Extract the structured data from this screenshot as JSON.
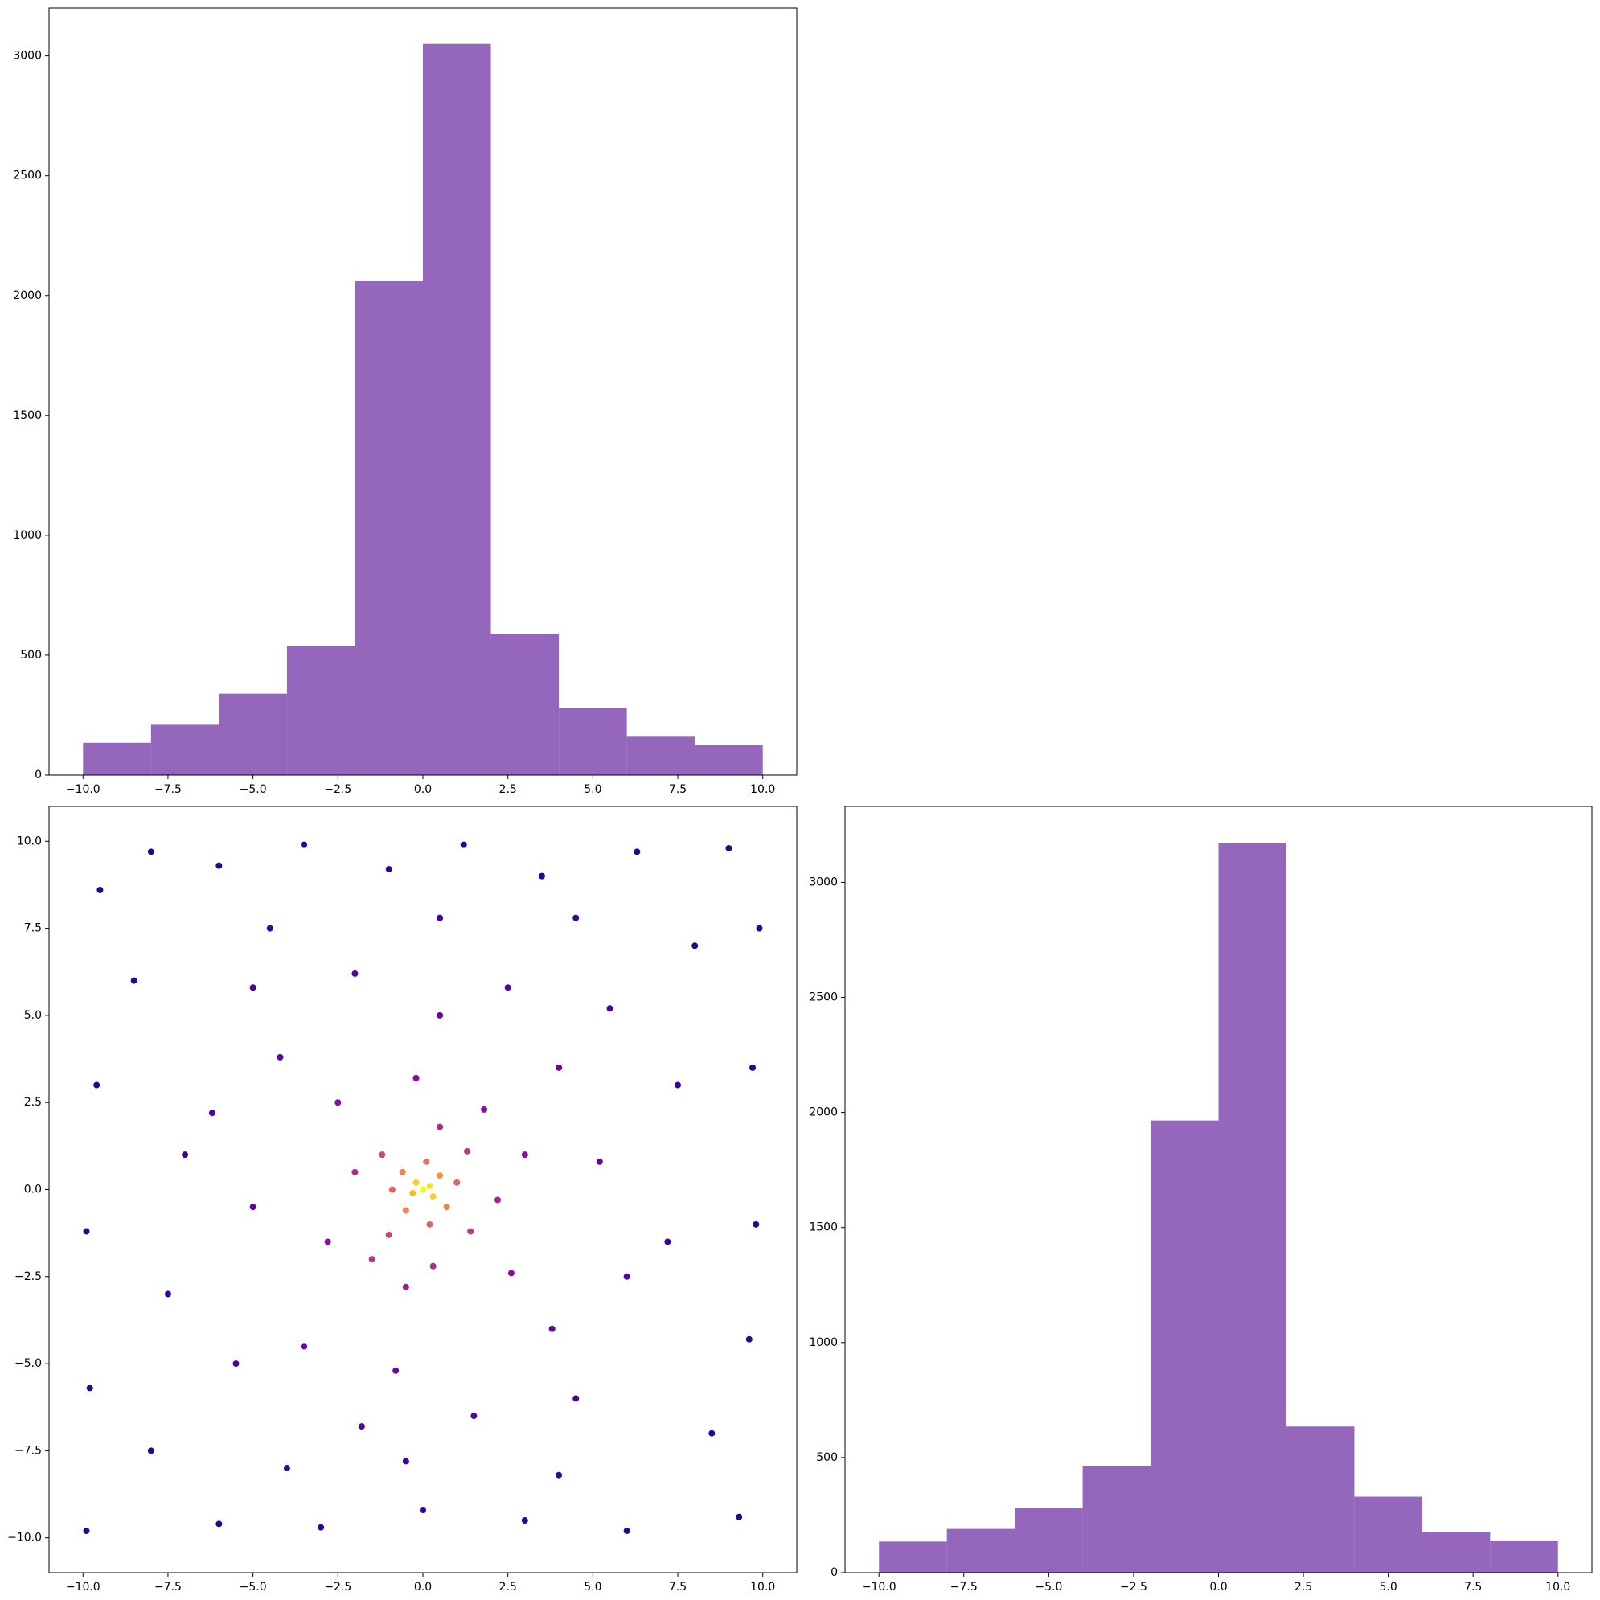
{
  "chart_data": [
    {
      "type": "histogram",
      "bins": [
        -10,
        -8,
        -6,
        -4,
        -2,
        0,
        2,
        4,
        6,
        8,
        10
      ],
      "values": [
        135,
        210,
        340,
        540,
        2060,
        3050,
        590,
        280,
        160,
        125
      ],
      "color": "#9467bd",
      "xlim": [
        -11,
        11
      ],
      "ylim": [
        0,
        3200
      ],
      "xticks": [
        {
          "value": -10,
          "label": "−10.0"
        },
        {
          "value": -7.5,
          "label": "−7.5"
        },
        {
          "value": -5,
          "label": "−5.0"
        },
        {
          "value": -2.5,
          "label": "−2.5"
        },
        {
          "value": 0,
          "label": "0.0"
        },
        {
          "value": 2.5,
          "label": "2.5"
        },
        {
          "value": 5,
          "label": "5.0"
        },
        {
          "value": 7.5,
          "label": "7.5"
        },
        {
          "value": 10,
          "label": "10.0"
        }
      ],
      "yticks": [
        0,
        500,
        1000,
        1500,
        2000,
        2500,
        3000
      ]
    },
    {
      "type": "scatter",
      "x": [
        0,
        0.2,
        -0.2,
        0.3,
        -0.3,
        0.5,
        -0.6,
        0.7,
        -0.5,
        0.1,
        -0.9,
        1.0,
        0.2,
        -1.2,
        1.3,
        -1.0,
        1.4,
        -1.5,
        0.5,
        -2.0,
        2.2,
        0.3,
        -0.5,
        1.8,
        -2.5,
        2.6,
        -2.8,
        3.0,
        -0.2,
        4.0,
        -4.2,
        3.8,
        -3.5,
        0.5,
        -0.8,
        5.2,
        -5.0,
        2.5,
        -2.0,
        6.0,
        -6.2,
        1.5,
        -1.8,
        4.5,
        -5.5,
        5.5,
        -5.0,
        -9.5,
        -8.0,
        -6.0,
        -3.5,
        -1.0,
        1.2,
        3.5,
        6.3,
        9.0,
        9.9,
        9.7,
        9.8,
        9.6,
        9.3,
        6.0,
        3.0,
        0.0,
        -3.0,
        -6.0,
        -9.9,
        -9.8,
        -9.9,
        -9.6,
        -8.5,
        8.0,
        8.5,
        -8.0,
        -7.0,
        7.2,
        0.5,
        -0.5,
        -7.5,
        7.5,
        -4.5,
        4.5,
        -4.0,
        4.0
      ],
      "y": [
        0,
        0.1,
        0.2,
        -0.2,
        -0.1,
        0.4,
        0.5,
        -0.5,
        -0.6,
        0.8,
        0.0,
        0.2,
        -1.0,
        1.0,
        1.1,
        -1.3,
        -1.2,
        -2.0,
        1.8,
        0.5,
        -0.3,
        -2.2,
        -2.8,
        2.3,
        2.5,
        -2.4,
        -1.5,
        1.0,
        3.2,
        3.5,
        3.8,
        -4.0,
        -4.5,
        5.0,
        -5.2,
        0.8,
        -0.5,
        5.8,
        6.2,
        -2.5,
        2.2,
        -6.5,
        -6.8,
        -6.0,
        -5.0,
        5.2,
        5.8,
        8.6,
        9.7,
        9.3,
        9.9,
        9.2,
        9.9,
        9.0,
        9.7,
        9.8,
        7.5,
        3.5,
        -1.0,
        -4.3,
        -9.4,
        -9.8,
        -9.5,
        -9.2,
        -9.7,
        -9.6,
        -9.8,
        -5.7,
        -1.2,
        3.0,
        6.0,
        7.0,
        -7.0,
        -7.5,
        1.0,
        -1.5,
        7.8,
        -7.8,
        -3.0,
        3.0,
        7.5,
        7.8,
        -8.0,
        -8.2
      ],
      "c": [
        1.0,
        0.95,
        0.9,
        0.9,
        0.85,
        0.75,
        0.7,
        0.7,
        0.7,
        0.65,
        0.6,
        0.6,
        0.6,
        0.5,
        0.45,
        0.5,
        0.45,
        0.45,
        0.4,
        0.4,
        0.38,
        0.4,
        0.35,
        0.3,
        0.28,
        0.28,
        0.3,
        0.28,
        0.28,
        0.2,
        0.18,
        0.18,
        0.18,
        0.2,
        0.2,
        0.18,
        0.18,
        0.15,
        0.14,
        0.14,
        0.14,
        0.14,
        0.13,
        0.12,
        0.12,
        0.12,
        0.12,
        0.05,
        0.05,
        0.06,
        0.06,
        0.07,
        0.06,
        0.06,
        0.05,
        0.05,
        0.05,
        0.06,
        0.06,
        0.05,
        0.05,
        0.05,
        0.06,
        0.07,
        0.06,
        0.05,
        0.05,
        0.05,
        0.06,
        0.06,
        0.06,
        0.06,
        0.06,
        0.06,
        0.08,
        0.08,
        0.1,
        0.1,
        0.08,
        0.08,
        0.09,
        0.09,
        0.09,
        0.09
      ],
      "colormap": [
        "#0d0887",
        "#5302a3",
        "#8b0aa5",
        "#b83289",
        "#db5c68",
        "#f48849",
        "#febd2a",
        "#f0f921"
      ],
      "clim": [
        0,
        1
      ],
      "xlim": [
        -11,
        11
      ],
      "ylim": [
        -11,
        11
      ],
      "xticks": [
        {
          "value": -10,
          "label": "−10.0"
        },
        {
          "value": -7.5,
          "label": "−7.5"
        },
        {
          "value": -5,
          "label": "−5.0"
        },
        {
          "value": -2.5,
          "label": "−2.5"
        },
        {
          "value": 0,
          "label": "0.0"
        },
        {
          "value": 2.5,
          "label": "2.5"
        },
        {
          "value": 5,
          "label": "5.0"
        },
        {
          "value": 7.5,
          "label": "7.5"
        },
        {
          "value": 10,
          "label": "10.0"
        }
      ],
      "yticks": [
        {
          "value": -10,
          "label": "−10.0"
        },
        {
          "value": -7.5,
          "label": "−7.5"
        },
        {
          "value": -5,
          "label": "−5.0"
        },
        {
          "value": -2.5,
          "label": "−2.5"
        },
        {
          "value": 0,
          "label": "0.0"
        },
        {
          "value": 2.5,
          "label": "2.5"
        },
        {
          "value": 5,
          "label": "5.0"
        },
        {
          "value": 7.5,
          "label": "7.5"
        },
        {
          "value": 10,
          "label": "10.0"
        }
      ]
    },
    {
      "type": "histogram",
      "bins": [
        -10,
        -8,
        -6,
        -4,
        -2,
        0,
        2,
        4,
        6,
        8,
        10
      ],
      "values": [
        135,
        190,
        280,
        465,
        1965,
        3170,
        635,
        330,
        175,
        140
      ],
      "color": "#9467bd",
      "xlim": [
        -11,
        11
      ],
      "ylim": [
        0,
        3330
      ],
      "xticks": [
        {
          "value": -10,
          "label": "−10.0"
        },
        {
          "value": -7.5,
          "label": "−7.5"
        },
        {
          "value": -5,
          "label": "−5.0"
        },
        {
          "value": -2.5,
          "label": "−2.5"
        },
        {
          "value": 0,
          "label": "0.0"
        },
        {
          "value": 2.5,
          "label": "2.5"
        },
        {
          "value": 5,
          "label": "5.0"
        },
        {
          "value": 7.5,
          "label": "7.5"
        },
        {
          "value": 10,
          "label": "10.0"
        }
      ],
      "yticks": [
        0,
        500,
        1000,
        1500,
        2000,
        2500,
        3000
      ]
    }
  ]
}
